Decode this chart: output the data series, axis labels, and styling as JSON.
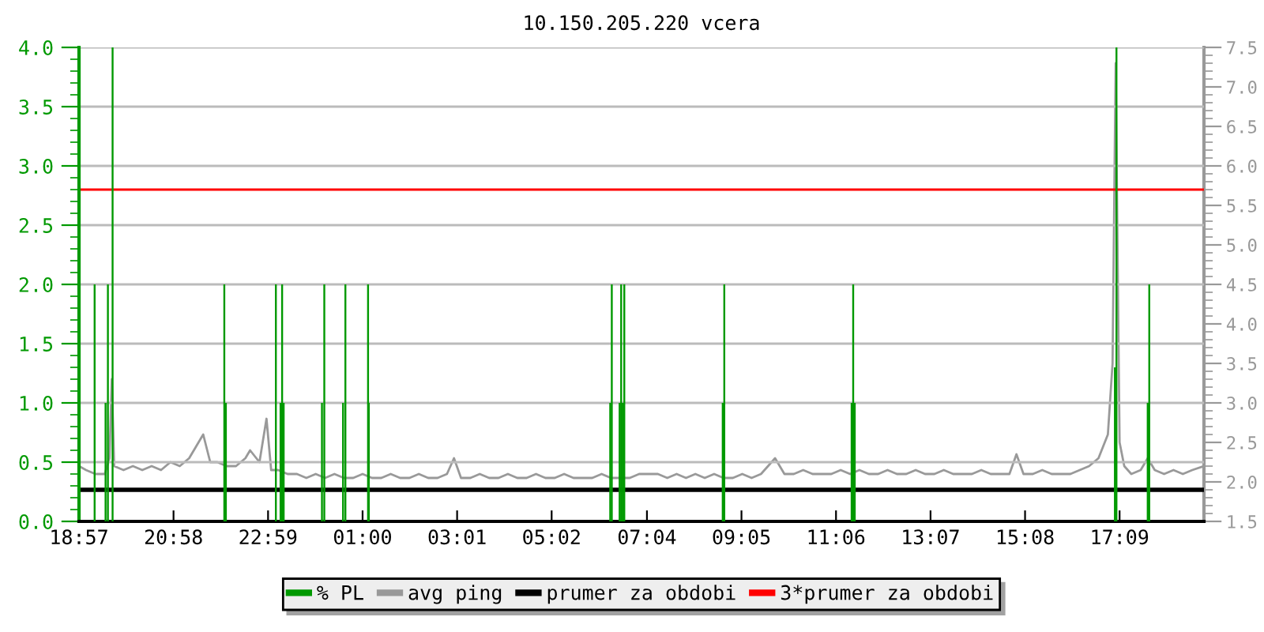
{
  "chart_data": {
    "type": "line",
    "title": "10.150.205.220 vcera",
    "xlim": [
      "2000-01-01T18:57",
      "2000-01-02T18:57"
    ],
    "xticks": [
      {
        "value": "2000-01-01T18:57",
        "label": "18:57"
      },
      {
        "value": "2000-01-01T20:58",
        "label": "20:58"
      },
      {
        "value": "2000-01-01T22:59",
        "label": "22:59"
      },
      {
        "value": "2000-01-02T01:00",
        "label": "01:00"
      },
      {
        "value": "2000-01-02T03:01",
        "label": "03:01"
      },
      {
        "value": "2000-01-02T05:02",
        "label": "05:02"
      },
      {
        "value": "2000-01-02T07:04",
        "label": "07:04"
      },
      {
        "value": "2000-01-02T09:05",
        "label": "09:05"
      },
      {
        "value": "2000-01-02T11:06",
        "label": "11:06"
      },
      {
        "value": "2000-01-02T13:07",
        "label": "13:07"
      },
      {
        "value": "2000-01-02T15:08",
        "label": "15:08"
      },
      {
        "value": "2000-01-02T17:09",
        "label": "17:09"
      }
    ],
    "ylim": [
      0,
      4
    ],
    "yticks": [
      {
        "value": 0,
        "label": "0.0"
      },
      0.5,
      {
        "value": 1,
        "label": "1.0"
      },
      1.5,
      {
        "value": 2,
        "label": "2.0"
      },
      2.5,
      {
        "value": 3,
        "label": "3.0"
      },
      3.5,
      {
        "value": 4,
        "label": "4.0"
      }
    ],
    "y2lim": [
      1.5,
      7.5
    ],
    "y2ticks": [
      1.5,
      {
        "value": 2,
        "label": "2.0"
      },
      2.5,
      {
        "value": 3,
        "label": "3.0"
      },
      3.5,
      {
        "value": 4,
        "label": "4.0"
      },
      4.5,
      {
        "value": 5,
        "label": "5.0"
      },
      5.5,
      {
        "value": 6,
        "label": "6.0"
      },
      6.5,
      {
        "value": 7,
        "label": "7.0"
      },
      7.5
    ],
    "grid": "y",
    "legend": "bottom",
    "series": [
      {
        "name": "% PL",
        "type": "bar",
        "color": "#009900",
        "axis": "y",
        "x": [
          "2000-01-01T19:17",
          "2000-01-01T19:31",
          "2000-01-01T19:34",
          "2000-01-01T19:40",
          "2000-01-01T22:03",
          "2000-01-01T22:05",
          "2000-01-01T23:09",
          "2000-01-01T23:15",
          "2000-01-01T23:17",
          "2000-01-01T23:19",
          "2000-01-02T00:08",
          "2000-01-02T00:11",
          "2000-01-02T00:35",
          "2000-01-02T00:38",
          "2000-01-02T01:07",
          "2000-01-02T01:08",
          "2000-01-02T06:17",
          "2000-01-02T06:19",
          "2000-01-02T06:29",
          "2000-01-02T06:31",
          "2000-01-02T06:33",
          "2000-01-02T06:35",
          "2000-01-02T08:41",
          "2000-01-02T08:43",
          "2000-01-02T11:26",
          "2000-01-02T11:28",
          "2000-01-02T11:30",
          "2000-01-02T17:03",
          "2000-01-02T17:05",
          "2000-01-02T17:45",
          "2000-01-02T17:47"
        ],
        "values": [
          2.0,
          1.0,
          2.0,
          4.0,
          2.0,
          1.0,
          2.0,
          1.0,
          2.0,
          1.0,
          1.0,
          2.0,
          1.0,
          2.0,
          2.0,
          1.0,
          1.0,
          2.0,
          1.0,
          2.0,
          1.0,
          2.0,
          1.0,
          2.0,
          1.0,
          2.0,
          1.0,
          1.3,
          4.0,
          1.0,
          2.0
        ]
      },
      {
        "name": "avg ping",
        "color": "#999999",
        "axis": "y2",
        "x": [
          "2000-01-01T18:57",
          "2000-01-01T19:06",
          "2000-01-01T19:18",
          "2000-01-01T19:30",
          "2000-01-01T19:36",
          "2000-01-01T19:39",
          "2000-01-01T19:42",
          "2000-01-01T19:54",
          "2000-01-01T20:06",
          "2000-01-01T20:18",
          "2000-01-01T20:30",
          "2000-01-01T20:42",
          "2000-01-01T20:54",
          "2000-01-01T21:06",
          "2000-01-01T21:18",
          "2000-01-01T21:27",
          "2000-01-01T21:36",
          "2000-01-01T21:45",
          "2000-01-01T21:54",
          "2000-01-01T22:06",
          "2000-01-01T22:18",
          "2000-01-01T22:30",
          "2000-01-01T22:36",
          "2000-01-01T22:48",
          "2000-01-01T22:57",
          "2000-01-01T23:03",
          "2000-01-01T23:12",
          "2000-01-01T23:24",
          "2000-01-01T23:36",
          "2000-01-01T23:48",
          "2000-01-02T00:00",
          "2000-01-02T00:12",
          "2000-01-02T00:24",
          "2000-01-02T00:36",
          "2000-01-02T00:48",
          "2000-01-02T01:00",
          "2000-01-02T01:12",
          "2000-01-02T01:24",
          "2000-01-02T01:36",
          "2000-01-02T01:48",
          "2000-01-02T02:00",
          "2000-01-02T02:12",
          "2000-01-02T02:24",
          "2000-01-02T02:36",
          "2000-01-02T02:48",
          "2000-01-02T02:57",
          "2000-01-02T03:06",
          "2000-01-02T03:18",
          "2000-01-02T03:30",
          "2000-01-02T03:42",
          "2000-01-02T03:54",
          "2000-01-02T04:06",
          "2000-01-02T04:18",
          "2000-01-02T04:30",
          "2000-01-02T04:42",
          "2000-01-02T04:54",
          "2000-01-02T05:06",
          "2000-01-02T05:18",
          "2000-01-02T05:30",
          "2000-01-02T05:42",
          "2000-01-02T05:54",
          "2000-01-02T06:06",
          "2000-01-02T06:18",
          "2000-01-02T06:30",
          "2000-01-02T06:42",
          "2000-01-02T06:54",
          "2000-01-02T07:06",
          "2000-01-02T07:18",
          "2000-01-02T07:30",
          "2000-01-02T07:42",
          "2000-01-02T07:54",
          "2000-01-02T08:06",
          "2000-01-02T08:18",
          "2000-01-02T08:30",
          "2000-01-02T08:42",
          "2000-01-02T08:54",
          "2000-01-02T09:06",
          "2000-01-02T09:18",
          "2000-01-02T09:30",
          "2000-01-02T09:48",
          "2000-01-02T10:00",
          "2000-01-02T10:12",
          "2000-01-02T10:24",
          "2000-01-02T10:36",
          "2000-01-02T10:48",
          "2000-01-02T11:00",
          "2000-01-02T11:12",
          "2000-01-02T11:24",
          "2000-01-02T11:36",
          "2000-01-02T11:48",
          "2000-01-02T12:00",
          "2000-01-02T12:12",
          "2000-01-02T12:24",
          "2000-01-02T12:36",
          "2000-01-02T12:48",
          "2000-01-02T13:00",
          "2000-01-02T13:12",
          "2000-01-02T13:24",
          "2000-01-02T13:36",
          "2000-01-02T13:48",
          "2000-01-02T14:00",
          "2000-01-02T14:12",
          "2000-01-02T14:24",
          "2000-01-02T14:36",
          "2000-01-02T14:48",
          "2000-01-02T14:57",
          "2000-01-02T15:06",
          "2000-01-02T15:18",
          "2000-01-02T15:30",
          "2000-01-02T15:42",
          "2000-01-02T15:54",
          "2000-01-02T16:06",
          "2000-01-02T16:18",
          "2000-01-02T16:30",
          "2000-01-02T16:42",
          "2000-01-02T16:54",
          "2000-01-02T17:00",
          "2000-01-02T17:04",
          "2000-01-02T17:06",
          "2000-01-02T17:09",
          "2000-01-02T17:15",
          "2000-01-02T17:24",
          "2000-01-02T17:36",
          "2000-01-02T17:45",
          "2000-01-02T17:54",
          "2000-01-02T18:06",
          "2000-01-02T18:18",
          "2000-01-02T18:30",
          "2000-01-02T18:42",
          "2000-01-02T18:57"
        ],
        "values": [
          2.2,
          2.15,
          2.1,
          2.1,
          2.3,
          3.3,
          2.2,
          2.15,
          2.2,
          2.15,
          2.2,
          2.15,
          2.25,
          2.2,
          2.3,
          2.45,
          2.6,
          2.25,
          2.25,
          2.2,
          2.2,
          2.3,
          2.4,
          2.25,
          2.8,
          2.15,
          2.15,
          2.1,
          2.1,
          2.05,
          2.1,
          2.05,
          2.1,
          2.05,
          2.05,
          2.1,
          2.05,
          2.05,
          2.1,
          2.05,
          2.05,
          2.1,
          2.05,
          2.05,
          2.1,
          2.3,
          2.05,
          2.05,
          2.1,
          2.05,
          2.05,
          2.1,
          2.05,
          2.05,
          2.1,
          2.05,
          2.05,
          2.1,
          2.05,
          2.05,
          2.05,
          2.1,
          2.05,
          2.05,
          2.05,
          2.1,
          2.1,
          2.1,
          2.05,
          2.1,
          2.05,
          2.1,
          2.05,
          2.1,
          2.05,
          2.05,
          2.1,
          2.05,
          2.1,
          2.3,
          2.1,
          2.1,
          2.15,
          2.1,
          2.1,
          2.1,
          2.15,
          2.1,
          2.15,
          2.1,
          2.1,
          2.15,
          2.1,
          2.1,
          2.15,
          2.1,
          2.1,
          2.15,
          2.1,
          2.1,
          2.1,
          2.15,
          2.1,
          2.1,
          2.1,
          2.35,
          2.1,
          2.1,
          2.15,
          2.1,
          2.1,
          2.1,
          2.15,
          2.2,
          2.3,
          2.6,
          3.5,
          7.3,
          5.3,
          2.5,
          2.2,
          2.1,
          2.15,
          2.3,
          2.15,
          2.1,
          2.15,
          2.1,
          2.15,
          2.2
        ]
      }
    ],
    "ref_lines": [
      {
        "axis": "y2",
        "value": 1.9,
        "label": "prumer za obdobi",
        "color": "#000000"
      },
      {
        "axis": "y2",
        "value": 5.7,
        "label": "3*prumer za obdobi",
        "color": "#ff0000"
      }
    ]
  }
}
